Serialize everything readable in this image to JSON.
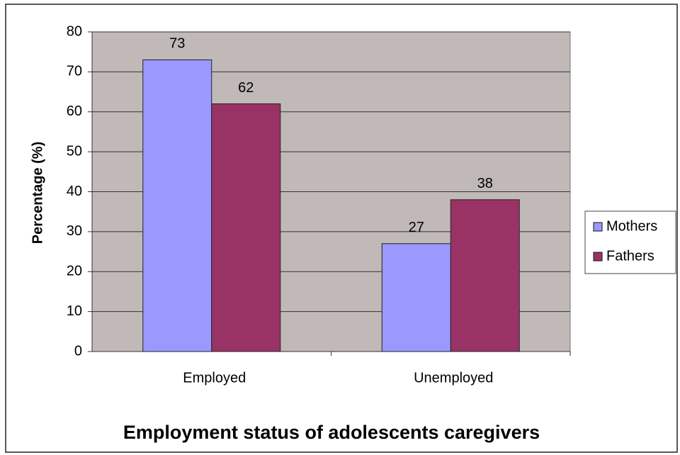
{
  "chart_data": {
    "type": "bar",
    "title": "Employment status of adolescents caregivers",
    "ylabel": "Percentage (%)",
    "categories": [
      "Employed",
      "Unemployed"
    ],
    "series": [
      {
        "name": "Mothers",
        "color": "#9999ff",
        "values": [
          73,
          27
        ]
      },
      {
        "name": "Fathers",
        "color": "#993366",
        "values": [
          62,
          38
        ]
      }
    ],
    "ylim": [
      0,
      80
    ],
    "yticks": [
      0,
      10,
      20,
      30,
      40,
      50,
      60,
      70,
      80
    ],
    "grid": true,
    "legend": "right"
  }
}
